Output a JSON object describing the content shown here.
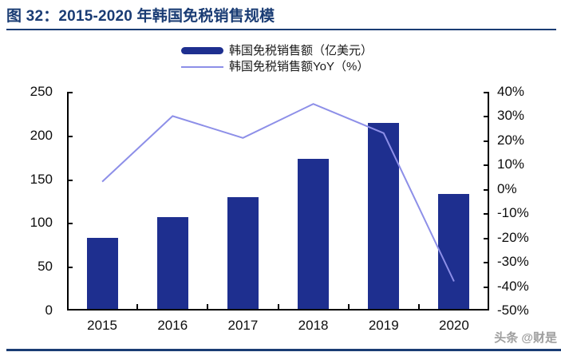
{
  "header": {
    "title": "图 32：2015-2020 年韩国免税销售规模"
  },
  "legend": {
    "items": [
      {
        "label": "韩国免税销售额（亿美元）",
        "swatch": "bar"
      },
      {
        "label": "韩国免税销售额YoY（%）",
        "swatch": "line"
      }
    ]
  },
  "colors": {
    "bar": "#1E2F8F",
    "line": "#8D8FE8",
    "title_navy": "#1A3C74",
    "axis_black": "#000000",
    "watermark_gray": "#9E9E9E"
  },
  "watermark": "头条 @财是",
  "chart_data": {
    "type": "bar",
    "combo": "bar+line dual-axis",
    "title": "2015-2020 年韩国免税销售规模",
    "categories": [
      "2015",
      "2016",
      "2017",
      "2018",
      "2019",
      "2020"
    ],
    "series": [
      {
        "name": "韩国免税销售额（亿美元）",
        "type": "bar",
        "axis": "left",
        "color": "#1E2F8F",
        "values": [
          83,
          107,
          130,
          173,
          214,
          133
        ]
      },
      {
        "name": "韩国免税销售额YoY（%）",
        "type": "line",
        "axis": "right",
        "color": "#8D8FE8",
        "values": [
          3,
          30,
          21,
          35,
          23,
          -38
        ]
      }
    ],
    "left_axis": {
      "min": 0,
      "max": 250,
      "step": 50,
      "tick_labels": [
        "250",
        "200",
        "150",
        "100",
        "50",
        "0"
      ]
    },
    "right_axis": {
      "min": -50,
      "max": 40,
      "step": 10,
      "tick_labels": [
        "40%",
        "30%",
        "20%",
        "10%",
        "0%",
        "-10%",
        "-20%",
        "-30%",
        "-40%",
        "-50%"
      ]
    },
    "legend_position": "top-center",
    "grid": false
  }
}
